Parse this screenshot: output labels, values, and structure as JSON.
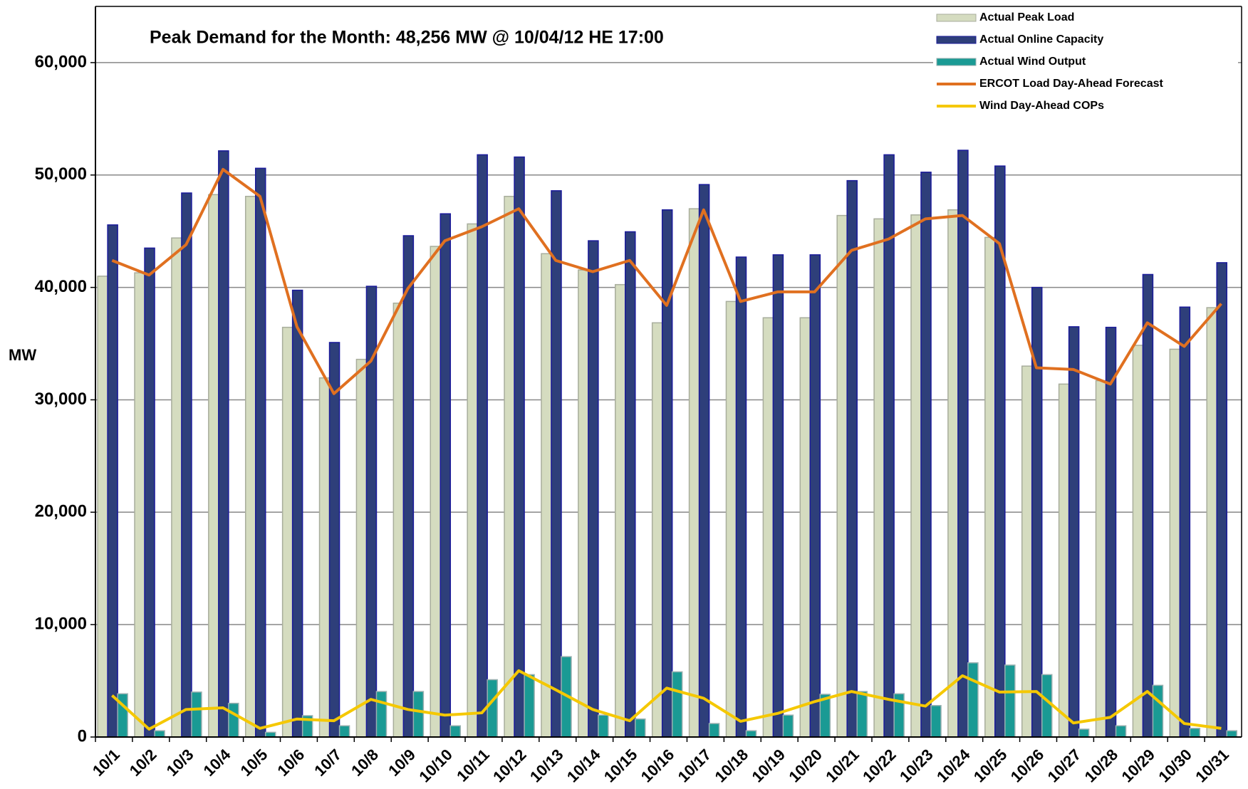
{
  "chart_data": {
    "type": "bar",
    "title": "Peak Demand for the Month: 48,256 MW @ 10/04/12 HE 17:00",
    "y_label": "MW",
    "categories": [
      "10/1",
      "10/2",
      "10/3",
      "10/4",
      "10/5",
      "10/6",
      "10/7",
      "10/8",
      "10/9",
      "10/10",
      "10/11",
      "10/12",
      "10/13",
      "10/14",
      "10/15",
      "10/16",
      "10/17",
      "10/18",
      "10/19",
      "10/20",
      "10/21",
      "10/22",
      "10/23",
      "10/24",
      "10/25",
      "10/26",
      "10/27",
      "10/28",
      "10/29",
      "10/30",
      "10/31"
    ],
    "series": [
      {
        "name": "Actual Peak Load",
        "type": "bar",
        "color": "#d5dcc0",
        "edge": "#a8ad9c",
        "values": [
          41000,
          41300,
          44400,
          48256,
          48100,
          36450,
          31950,
          33600,
          38600,
          43650,
          45650,
          48100,
          43000,
          41550,
          40250,
          36850,
          47000,
          38750,
          37300,
          37300,
          46400,
          46100,
          46450,
          46900,
          44450,
          33000,
          31400,
          31700,
          34850,
          34500,
          38200
        ]
      },
      {
        "name": "Actual Online Capacity",
        "type": "bar",
        "color": "#2e3f7a",
        "edge": "#1a1a9a",
        "values": [
          45560,
          43500,
          48400,
          52150,
          50600,
          39750,
          35100,
          40100,
          44600,
          46550,
          51800,
          51600,
          48600,
          44150,
          44950,
          46900,
          49150,
          42700,
          42900,
          42900,
          49500,
          51800,
          50250,
          52200,
          50800,
          40000,
          36500,
          36450,
          41150,
          38250,
          42200
        ]
      },
      {
        "name": "Actual Wind Output",
        "type": "bar",
        "color": "#1a9a94",
        "edge": "#9ab0b0",
        "values": [
          3850,
          560,
          4000,
          3000,
          420,
          1900,
          1000,
          4050,
          4050,
          1000,
          5100,
          5550,
          7150,
          1950,
          1600,
          5800,
          1200,
          560,
          1950,
          3800,
          4050,
          3850,
          2800,
          6600,
          6400,
          5550,
          700,
          1000,
          4600,
          770,
          560
        ]
      },
      {
        "name": "ERCOT Load Day-Ahead Forecast",
        "type": "line",
        "color": "#e07020",
        "values": [
          42400,
          41100,
          43800,
          50500,
          48100,
          36500,
          30550,
          33450,
          39900,
          44150,
          45400,
          47000,
          42400,
          41400,
          42400,
          38400,
          46900,
          38750,
          39600,
          39600,
          43300,
          44300,
          46100,
          46400,
          43900,
          32850,
          32700,
          31400,
          36850,
          34750,
          38550
        ]
      },
      {
        "name": "Wind Day-Ahead COPs",
        "type": "line",
        "color": "#f5c800",
        "values": [
          3700,
          700,
          2450,
          2600,
          770,
          1600,
          1450,
          3350,
          2450,
          1950,
          2150,
          5900,
          4200,
          2450,
          1450,
          4350,
          3450,
          1400,
          2100,
          3150,
          4050,
          3350,
          2750,
          5450,
          4000,
          4050,
          1250,
          1750,
          4050,
          1200,
          770
        ]
      }
    ],
    "ylim": [
      0,
      65000
    ],
    "yticks": [
      0,
      {
        "value": 10000,
        "label": "10,000"
      },
      {
        "value": 20000,
        "label": "20,000"
      },
      {
        "value": 30000,
        "label": "30,000"
      },
      {
        "value": 40000,
        "label": "40,000"
      },
      {
        "value": 50000,
        "label": "50,000"
      },
      {
        "value": 60000,
        "label": "60,000"
      }
    ],
    "grid": true,
    "legend": "top-right"
  }
}
